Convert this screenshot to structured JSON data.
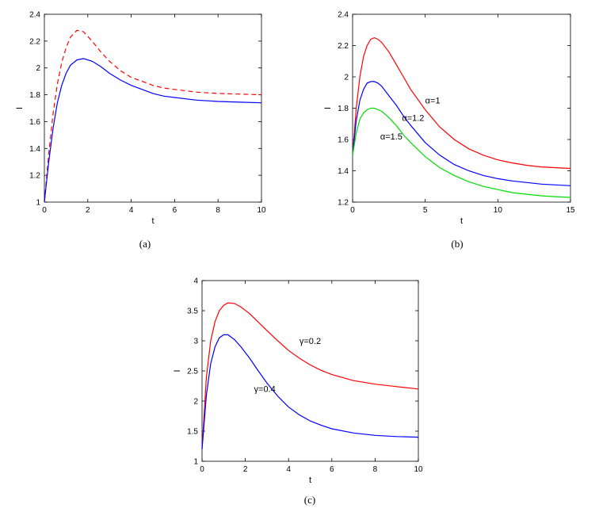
{
  "figure": {
    "captions": [
      "(a)",
      "(b)",
      "(c)"
    ]
  },
  "chart_data": [
    {
      "type": "line",
      "panel_label": "(a)",
      "xlabel": "t",
      "ylabel": "I",
      "xlim": [
        0,
        10
      ],
      "ylim": [
        1,
        2.4
      ],
      "xticks": [
        0,
        2,
        4,
        6,
        8,
        10
      ],
      "yticks": [
        1,
        1.2,
        1.4,
        1.6,
        1.8,
        2,
        2.2,
        2.4
      ],
      "series": [
        {
          "color": "#ff0000",
          "dash": "dashed",
          "x": [
            0,
            0.2,
            0.4,
            0.6,
            0.8,
            1.0,
            1.2,
            1.5,
            1.8,
            2.2,
            2.6,
            3.0,
            3.5,
            4.0,
            4.5,
            5.0,
            5.5,
            6.0,
            7.0,
            8.0,
            9.0,
            10.0
          ],
          "y": [
            1.0,
            1.36,
            1.66,
            1.88,
            2.04,
            2.15,
            2.23,
            2.28,
            2.27,
            2.2,
            2.12,
            2.05,
            1.98,
            1.93,
            1.9,
            1.87,
            1.85,
            1.84,
            1.82,
            1.81,
            1.805,
            1.8
          ]
        },
        {
          "color": "#0000ff",
          "dash": "solid",
          "x": [
            0,
            0.2,
            0.4,
            0.6,
            0.8,
            1.0,
            1.2,
            1.5,
            1.8,
            2.2,
            2.6,
            3.0,
            3.5,
            4.0,
            4.5,
            5.0,
            5.5,
            6.0,
            7.0,
            8.0,
            9.0,
            10.0
          ],
          "y": [
            1.0,
            1.3,
            1.55,
            1.74,
            1.87,
            1.96,
            2.02,
            2.06,
            2.07,
            2.05,
            2.01,
            1.96,
            1.91,
            1.87,
            1.84,
            1.81,
            1.79,
            1.78,
            1.76,
            1.75,
            1.745,
            1.74
          ]
        }
      ],
      "annotations": []
    },
    {
      "type": "line",
      "panel_label": "(b)",
      "xlabel": "t",
      "ylabel": "I",
      "xlim": [
        0,
        15
      ],
      "ylim": [
        1.2,
        2.4
      ],
      "xticks": [
        0,
        5,
        10,
        15
      ],
      "yticks": [
        1.2,
        1.4,
        1.6,
        1.8,
        2,
        2.2,
        2.4
      ],
      "series": [
        {
          "name": "α=1",
          "color": "#ff0000",
          "dash": "solid",
          "x": [
            0,
            0.25,
            0.5,
            0.75,
            1.0,
            1.25,
            1.5,
            1.75,
            2.0,
            2.5,
            3.0,
            3.5,
            4.0,
            5.0,
            6.0,
            7.0,
            8.0,
            9.0,
            10.0,
            11.0,
            12.0,
            13.0,
            14.0,
            15.0
          ],
          "y": [
            1.5,
            1.8,
            2.0,
            2.13,
            2.2,
            2.24,
            2.25,
            2.24,
            2.22,
            2.16,
            2.08,
            2.0,
            1.92,
            1.79,
            1.68,
            1.6,
            1.54,
            1.5,
            1.47,
            1.45,
            1.435,
            1.425,
            1.42,
            1.415
          ]
        },
        {
          "name": "α=1.2",
          "color": "#0000ff",
          "dash": "solid",
          "x": [
            0,
            0.25,
            0.5,
            0.75,
            1.0,
            1.25,
            1.5,
            1.75,
            2.0,
            2.5,
            3.0,
            3.5,
            4.0,
            5.0,
            6.0,
            7.0,
            8.0,
            9.0,
            10.0,
            11.0,
            12.0,
            13.0,
            14.0,
            15.0
          ],
          "y": [
            1.5,
            1.72,
            1.85,
            1.92,
            1.96,
            1.97,
            1.97,
            1.96,
            1.94,
            1.88,
            1.82,
            1.75,
            1.69,
            1.58,
            1.5,
            1.44,
            1.4,
            1.37,
            1.35,
            1.335,
            1.325,
            1.315,
            1.31,
            1.305
          ]
        },
        {
          "name": "α=1.5",
          "color": "#00dd00",
          "dash": "solid",
          "x": [
            0,
            0.25,
            0.5,
            0.75,
            1.0,
            1.25,
            1.5,
            1.75,
            2.0,
            2.5,
            3.0,
            3.5,
            4.0,
            5.0,
            6.0,
            7.0,
            8.0,
            9.0,
            10.0,
            11.0,
            12.0,
            13.0,
            14.0,
            15.0
          ],
          "y": [
            1.5,
            1.64,
            1.73,
            1.77,
            1.79,
            1.8,
            1.8,
            1.79,
            1.78,
            1.74,
            1.69,
            1.63,
            1.58,
            1.49,
            1.42,
            1.37,
            1.33,
            1.3,
            1.28,
            1.26,
            1.25,
            1.24,
            1.235,
            1.23
          ]
        }
      ],
      "annotations": [
        {
          "text": "α=1",
          "x": 5.0,
          "y": 1.83
        },
        {
          "text": "α=1.2",
          "x": 3.4,
          "y": 1.72
        },
        {
          "text": "α=1.5",
          "x": 1.9,
          "y": 1.6
        }
      ]
    },
    {
      "type": "line",
      "panel_label": "(c)",
      "xlabel": "t",
      "ylabel": "I",
      "xlim": [
        0,
        10
      ],
      "ylim": [
        1,
        4
      ],
      "xticks": [
        0,
        2,
        4,
        6,
        8,
        10
      ],
      "yticks": [
        1,
        1.5,
        2,
        2.5,
        3,
        3.5,
        4
      ],
      "series": [
        {
          "name": "γ=0.2",
          "color": "#ff0000",
          "dash": "solid",
          "x": [
            0,
            0.2,
            0.4,
            0.6,
            0.8,
            1.0,
            1.2,
            1.5,
            1.8,
            2.2,
            2.6,
            3.0,
            3.5,
            4.0,
            4.5,
            5.0,
            5.5,
            6.0,
            7.0,
            8.0,
            9.0,
            10.0
          ],
          "y": [
            1.2,
            2.4,
            3.0,
            3.32,
            3.5,
            3.59,
            3.63,
            3.62,
            3.56,
            3.45,
            3.31,
            3.17,
            3.0,
            2.84,
            2.71,
            2.6,
            2.51,
            2.44,
            2.34,
            2.28,
            2.24,
            2.2
          ]
        },
        {
          "name": "γ=0.4",
          "color": "#0000ff",
          "dash": "solid",
          "x": [
            0,
            0.2,
            0.4,
            0.6,
            0.8,
            1.0,
            1.2,
            1.5,
            1.8,
            2.2,
            2.6,
            3.0,
            3.5,
            4.0,
            4.5,
            5.0,
            5.5,
            6.0,
            7.0,
            8.0,
            9.0,
            10.0
          ],
          "y": [
            1.2,
            2.1,
            2.62,
            2.9,
            3.05,
            3.1,
            3.1,
            3.02,
            2.9,
            2.71,
            2.5,
            2.3,
            2.08,
            1.9,
            1.77,
            1.67,
            1.6,
            1.54,
            1.47,
            1.43,
            1.41,
            1.4
          ]
        }
      ],
      "annotations": [
        {
          "text": "γ=0.2",
          "x": 4.5,
          "y": 2.95
        },
        {
          "text": "γ=0.4",
          "x": 2.4,
          "y": 2.15
        }
      ]
    }
  ]
}
